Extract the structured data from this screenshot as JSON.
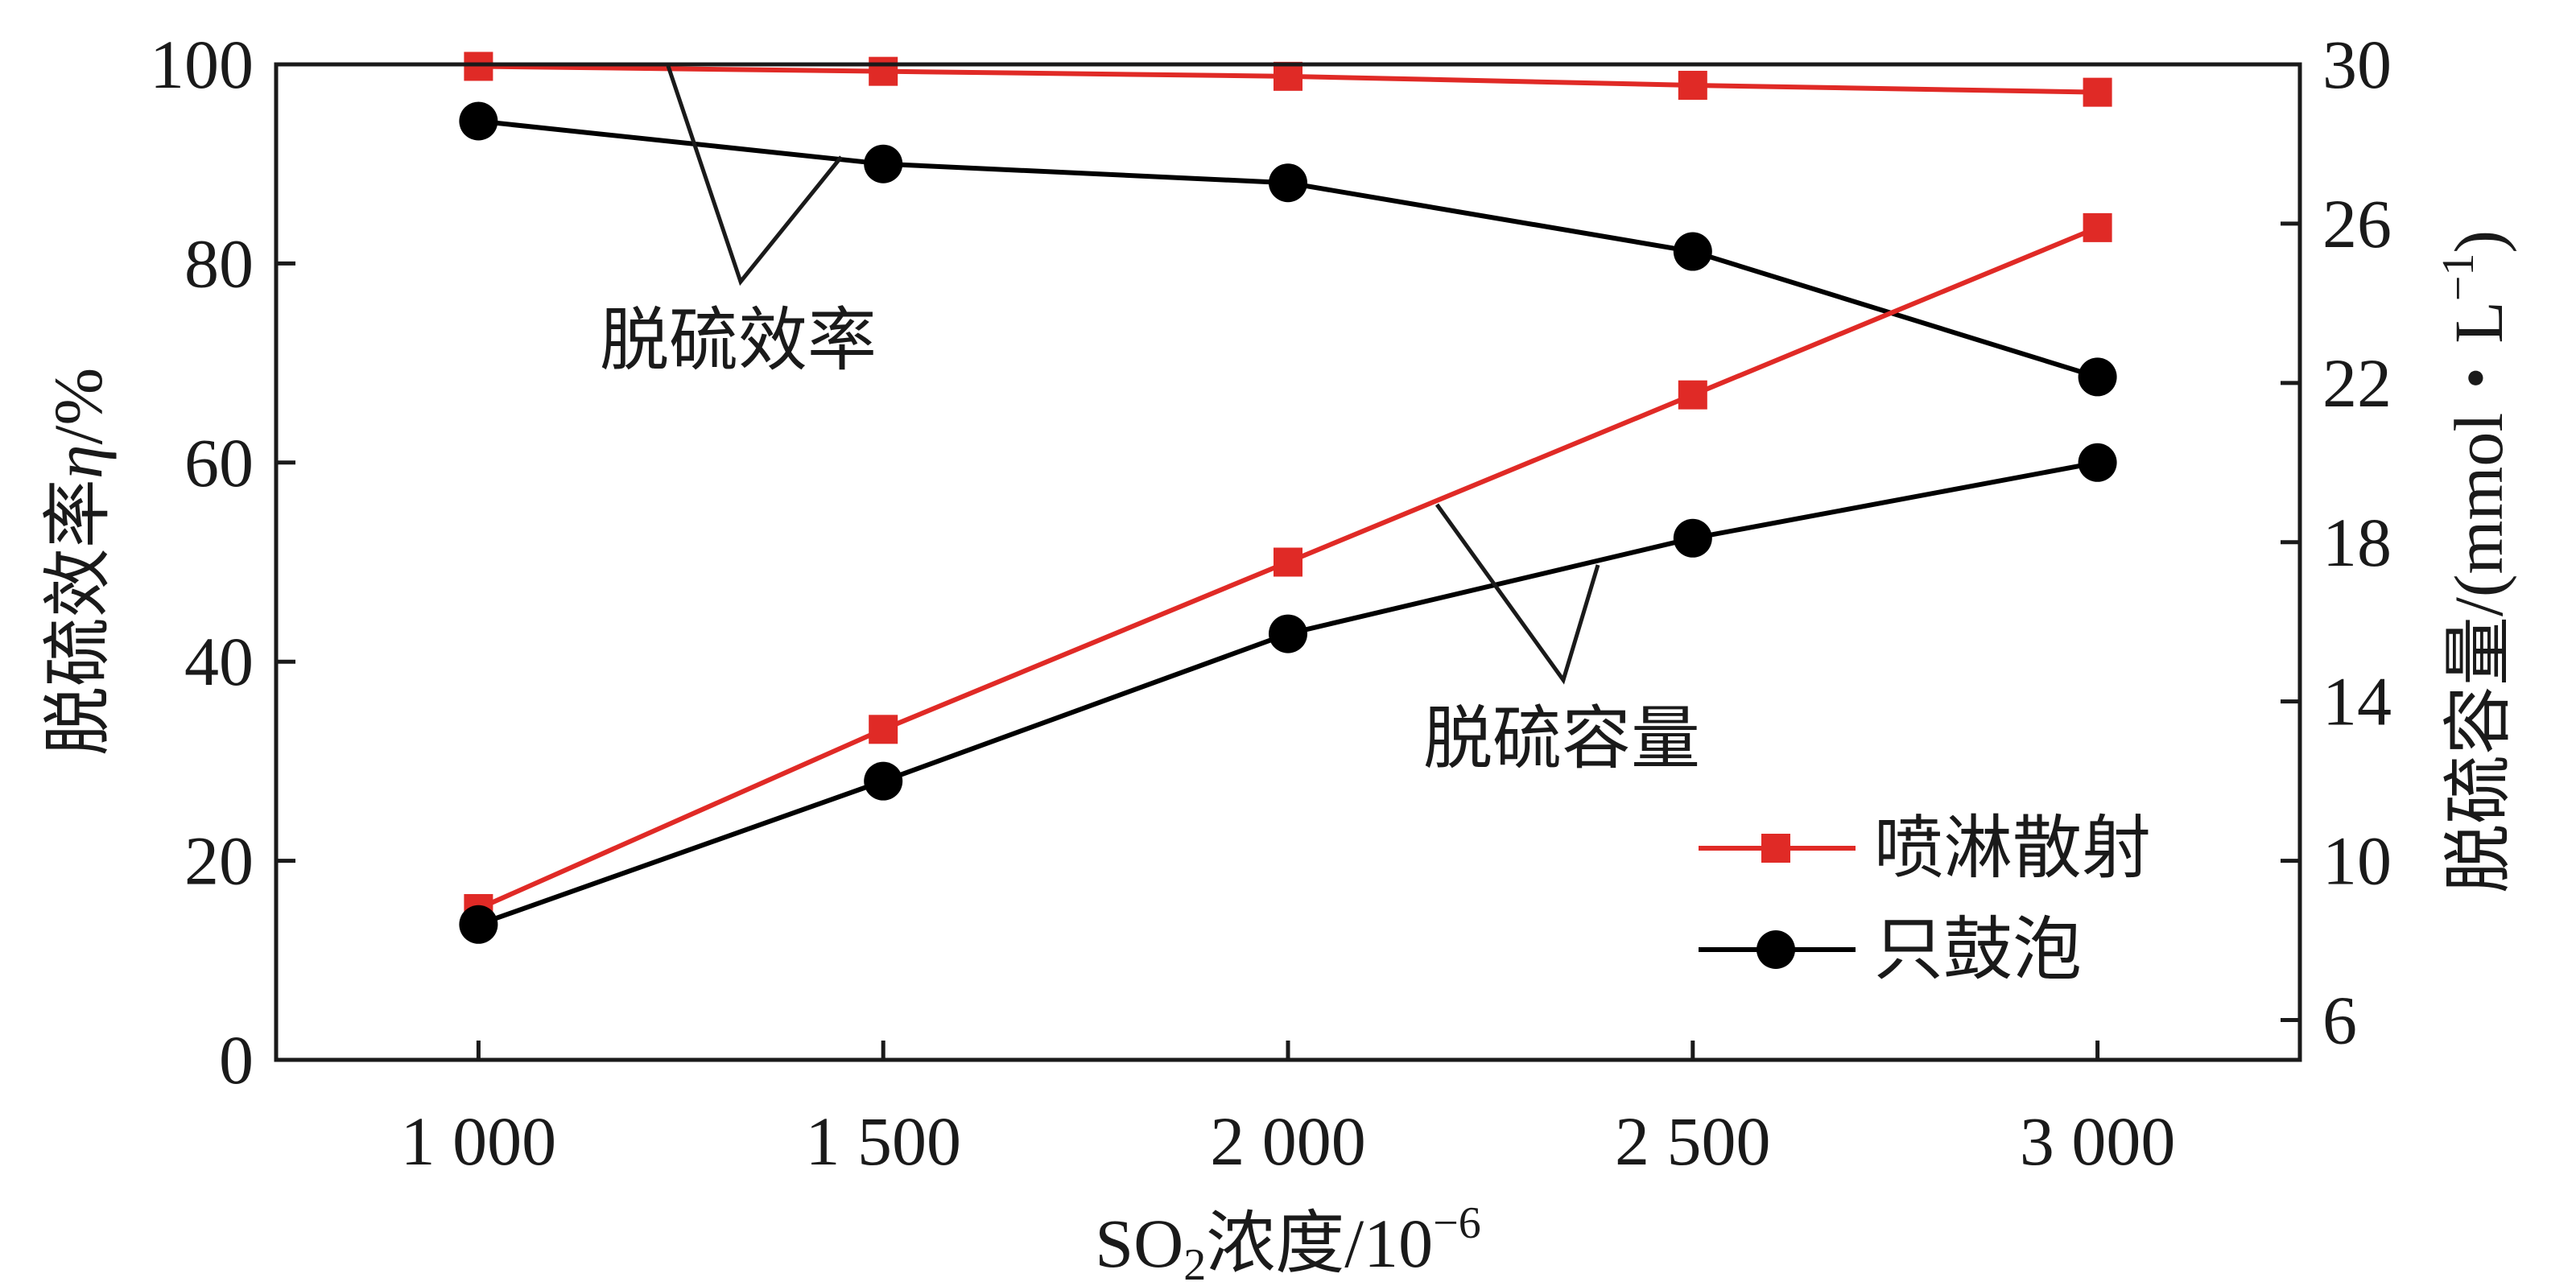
{
  "chart_data": {
    "type": "line",
    "x": [
      1000,
      1500,
      2000,
      2500,
      3000
    ],
    "xtick_labels": [
      "1 000",
      "1 500",
      "2 000",
      "2 500",
      "3 000"
    ],
    "xlim": [
      750,
      3250
    ],
    "xlabel": {
      "base": "SO",
      "sub": "2",
      "rest": "浓度/10",
      "sup": "−6"
    },
    "ylabel_left": {
      "main": "脱硫效率",
      "var": "η",
      "unit": "/%"
    },
    "ylabel_right": {
      "main": "脱硫容量/(mmol・L",
      "sup": "−1",
      "close": ")"
    },
    "ylim_left": [
      0,
      100
    ],
    "yticks_left": [
      0,
      20,
      40,
      60,
      80,
      100
    ],
    "ylim_right": [
      5,
      30
    ],
    "yticks_right": [
      6,
      10,
      14,
      18,
      22,
      26,
      30
    ],
    "grid": false,
    "legend_position": "lower-right",
    "series": [
      {
        "name": "喷淋散射",
        "metric": "efficiency",
        "axis": "left",
        "color": "#e02a26",
        "marker": "square",
        "values": [
          99.8,
          99.3,
          98.8,
          97.9,
          97.2
        ]
      },
      {
        "name": "只鼓泡",
        "metric": "efficiency",
        "axis": "left",
        "color": "#000000",
        "marker": "circle",
        "values": [
          94.3,
          90.0,
          88.1,
          81.2,
          68.6
        ]
      },
      {
        "name": "喷淋散射",
        "metric": "capacity",
        "axis": "right",
        "color": "#e02a26",
        "marker": "square",
        "values": [
          8.8,
          13.3,
          17.5,
          21.7,
          25.9
        ]
      },
      {
        "name": "只鼓泡",
        "metric": "capacity",
        "axis": "right",
        "color": "#000000",
        "marker": "circle",
        "values": [
          8.4,
          12.0,
          15.7,
          18.1,
          20.0
        ]
      }
    ],
    "legend": [
      {
        "label": "喷淋散射",
        "color": "#e02a26",
        "marker": "square"
      },
      {
        "label": "只鼓泡",
        "color": "#000000",
        "marker": "circle"
      }
    ],
    "annotations": [
      {
        "text": "脱硫效率",
        "target": "efficiency"
      },
      {
        "text": "脱硫容量",
        "target": "capacity"
      }
    ]
  }
}
